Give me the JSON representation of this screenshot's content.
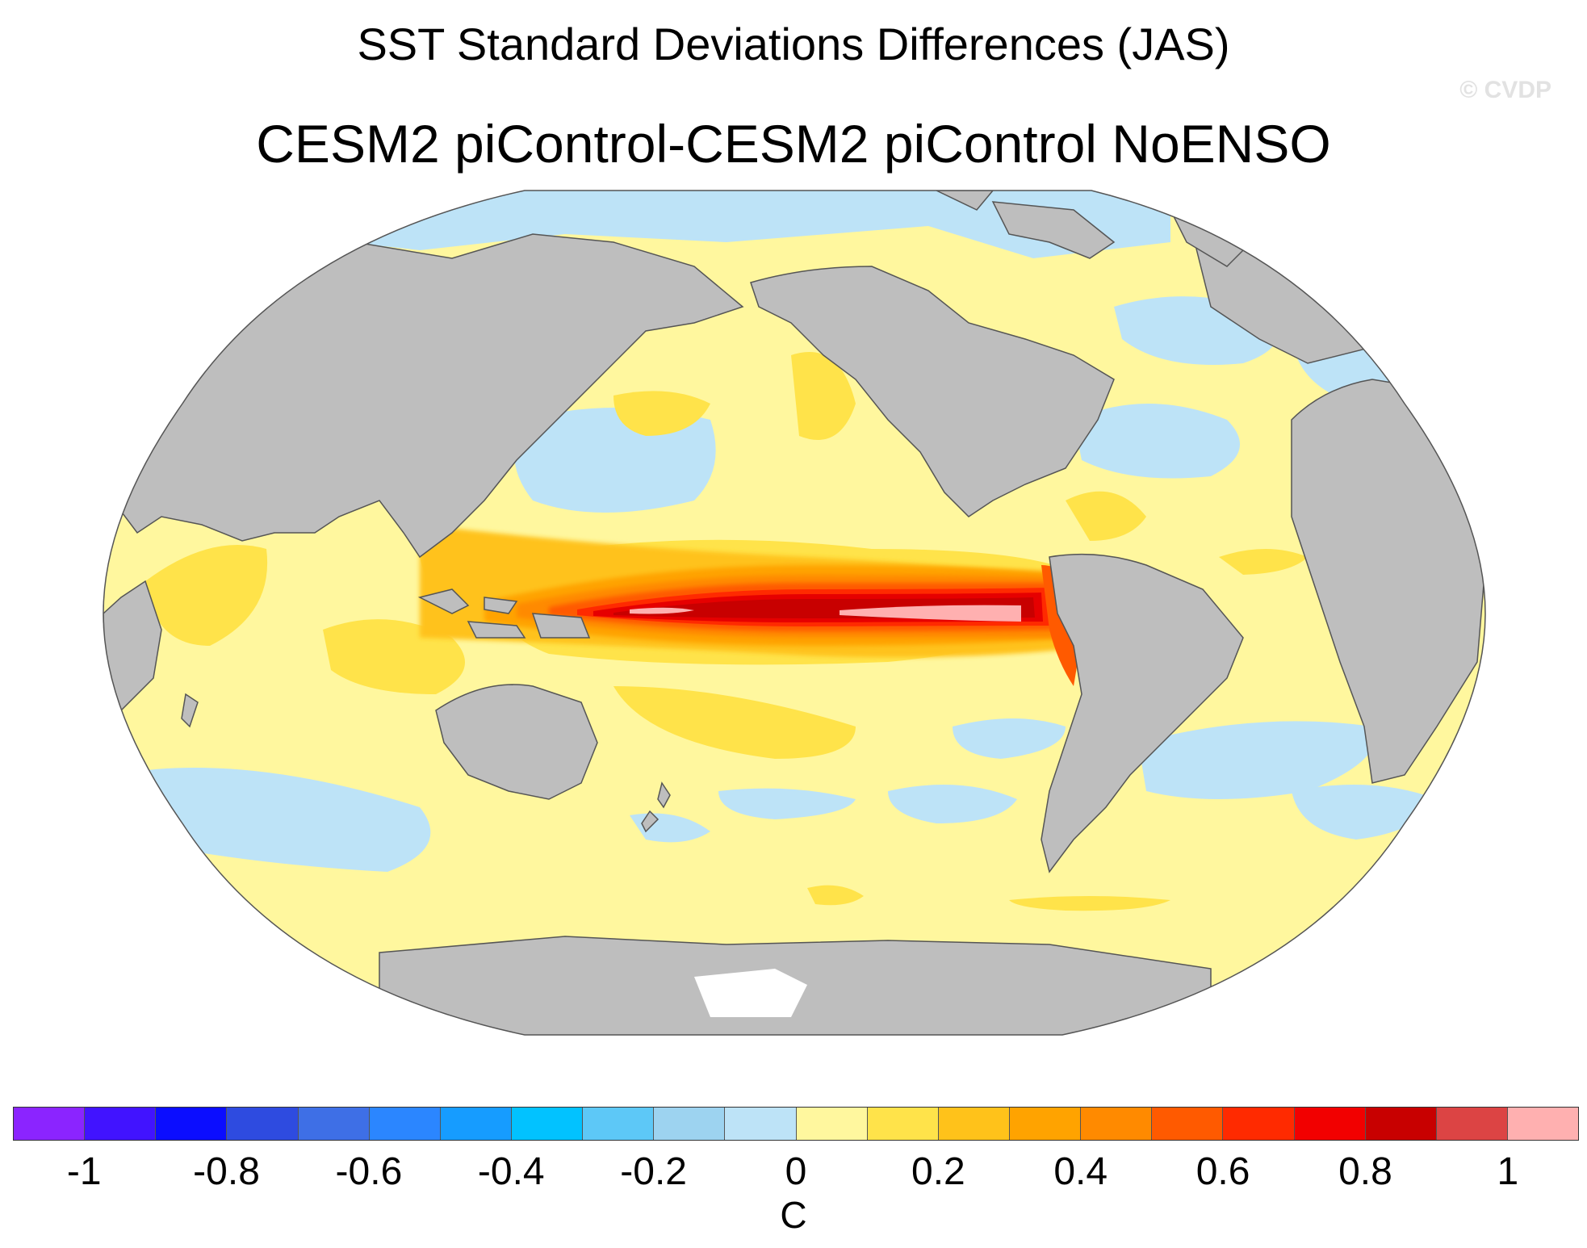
{
  "title": "SST Standard Deviations Differences (JAS)",
  "subtitle": "CESM2 piControl-CESM2 piControl NoENSO",
  "watermark": "© CVDP",
  "colorbar": {
    "unit": "C",
    "tick_labels": [
      "-1",
      "-0.8",
      "-0.6",
      "-0.4",
      "-0.2",
      "0",
      "0.2",
      "0.4",
      "0.6",
      "0.8",
      "1"
    ],
    "colors": [
      "#8b24ff",
      "#4113ff",
      "#0b0dff",
      "#2e4be0",
      "#3e6fe6",
      "#2b86ff",
      "#169cff",
      "#02c2ff",
      "#5dc8f7",
      "#9dd3f0",
      "#bde3f7",
      "#fff79e",
      "#ffe34a",
      "#ffc21a",
      "#ffa300",
      "#ff8a00",
      "#ff5a00",
      "#ff2a00",
      "#f20000",
      "#c80000",
      "#dc4444",
      "#ffb0b0"
    ]
  },
  "map": {
    "projection": "Robinson",
    "land_color": "#bebebe",
    "ocean_base_color": "#fff79e"
  }
}
